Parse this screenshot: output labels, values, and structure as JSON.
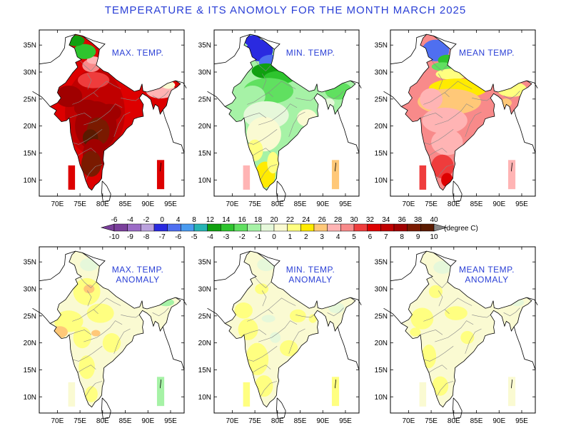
{
  "title": "TEMPERATURE & ITS  ANOMOLY FOR THE MONTH MARCH 2025",
  "lon_labels": [
    "70E",
    "75E",
    "80E",
    "85E",
    "90E",
    "95E"
  ],
  "lat_labels": [
    "10N",
    "15N",
    "20N",
    "25N",
    "30N",
    "35N"
  ],
  "panels": [
    {
      "label": [
        "MAX. TEMP."
      ],
      "kind": "max"
    },
    {
      "label": [
        "MIN. TEMP."
      ],
      "kind": "min"
    },
    {
      "label": [
        "MEAN TEMP."
      ],
      "kind": "mean"
    },
    {
      "label": [
        "MAX. TEMP.",
        "ANOMALY"
      ],
      "kind": "max_anom"
    },
    {
      "label": [
        "MIN. TEMP.",
        "ANOMALY"
      ],
      "kind": "min_anom"
    },
    {
      "label": [
        "MEAN TEMP.",
        "ANOMALY"
      ],
      "kind": "mean_anom"
    }
  ],
  "colorbar": {
    "temp_ticks": [
      "-6",
      "-4",
      "-2",
      "0",
      "4",
      "8",
      "12",
      "14",
      "16",
      "18",
      "20",
      "22",
      "24",
      "26",
      "28",
      "30",
      "32",
      "34",
      "36",
      "38",
      "40"
    ],
    "anom_ticks": [
      "-10",
      "-9",
      "-8",
      "-7",
      "-6",
      "-5",
      "-4",
      "-3",
      "-2",
      "-1",
      "0",
      "1",
      "2",
      "3",
      "4",
      "5",
      "6",
      "7",
      "8",
      "9",
      "10"
    ],
    "unit": "(degree C)",
    "colors": [
      "#7a3f9b",
      "#9b6bc6",
      "#bba2de",
      "#2a2ae0",
      "#4f6ff0",
      "#4a9bf0",
      "#27b4b4",
      "#10a010",
      "#2ec42e",
      "#60e060",
      "#a6f2a6",
      "#e6f8da",
      "#fafad2",
      "#ffff80",
      "#ffeb00",
      "#ffc878",
      "#ffb4b4",
      "#f88a8a",
      "#ef3c3c",
      "#dd0000",
      "#c00000",
      "#a00000",
      "#7a1a00",
      "#5a1a00"
    ]
  }
}
